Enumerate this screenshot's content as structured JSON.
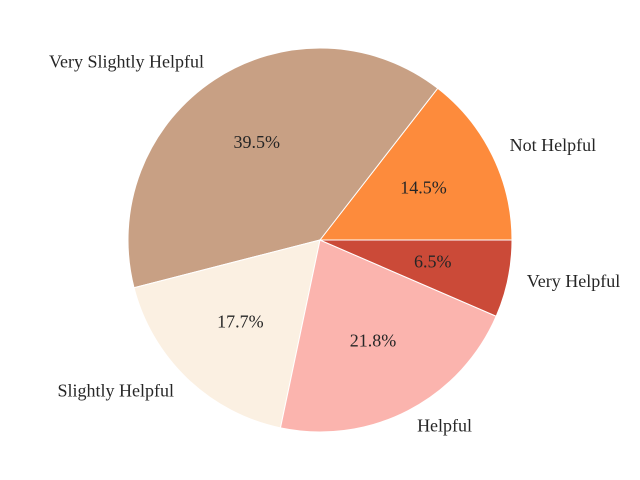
{
  "chart_data": {
    "type": "pie",
    "categories": [
      "Not Helpful",
      "Very Slightly Helpful",
      "Slightly Helpful",
      "Helpful",
      "Very Helpful"
    ],
    "values": [
      14.5,
      39.5,
      17.7,
      21.8,
      6.5
    ],
    "value_labels": [
      "14.5%",
      "39.5%",
      "17.7%",
      "21.8%",
      "6.5%"
    ],
    "colors": [
      "#fd8b3c",
      "#c8a084",
      "#fbf0e2",
      "#fbb4ae",
      "#cb4a38"
    ]
  }
}
